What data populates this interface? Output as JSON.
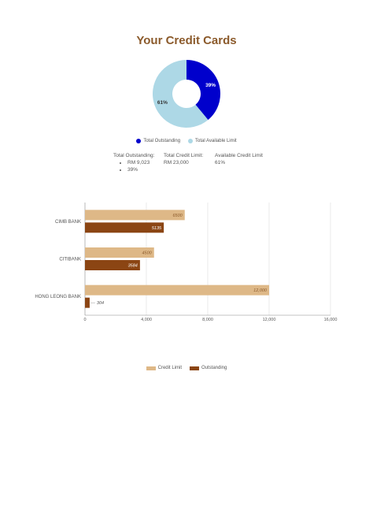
{
  "title": "Your Credit Cards",
  "donut": {
    "slices": [
      {
        "label": "Total Outstanding",
        "value": 39,
        "text": "39%",
        "color": "#0000cc"
      },
      {
        "label": "Total Available Limit",
        "value": 61,
        "text": "61%",
        "color": "#add8e6"
      }
    ]
  },
  "stats": {
    "outstanding": {
      "label": "Total Outstanding:",
      "items": [
        "RM 9,023",
        "39%"
      ]
    },
    "credit_limit": {
      "label": "Total Credit Limit:",
      "value": "RM 23,000"
    },
    "available": {
      "label": "Available Credit Limit",
      "value": "61%"
    }
  },
  "chart_data": {
    "type": "bar",
    "orientation": "horizontal",
    "categories": [
      "CIMB BANK",
      "CITIBANK",
      "HONG LEONG BANK"
    ],
    "series": [
      {
        "name": "Credit Limit",
        "values": [
          6500,
          4500,
          12000
        ],
        "labels": [
          "6500",
          "4500",
          "12,000"
        ],
        "color": "#deb887"
      },
      {
        "name": "Outstanding",
        "values": [
          5135,
          3584,
          304
        ],
        "labels": [
          "5135",
          "3584",
          "304"
        ],
        "color": "#8b4513"
      }
    ],
    "xlim": [
      0,
      16000
    ],
    "xticks": [
      "0",
      "4,000",
      "8,000",
      "12,000",
      "16,000"
    ],
    "grid": true,
    "legend": "bottom"
  }
}
